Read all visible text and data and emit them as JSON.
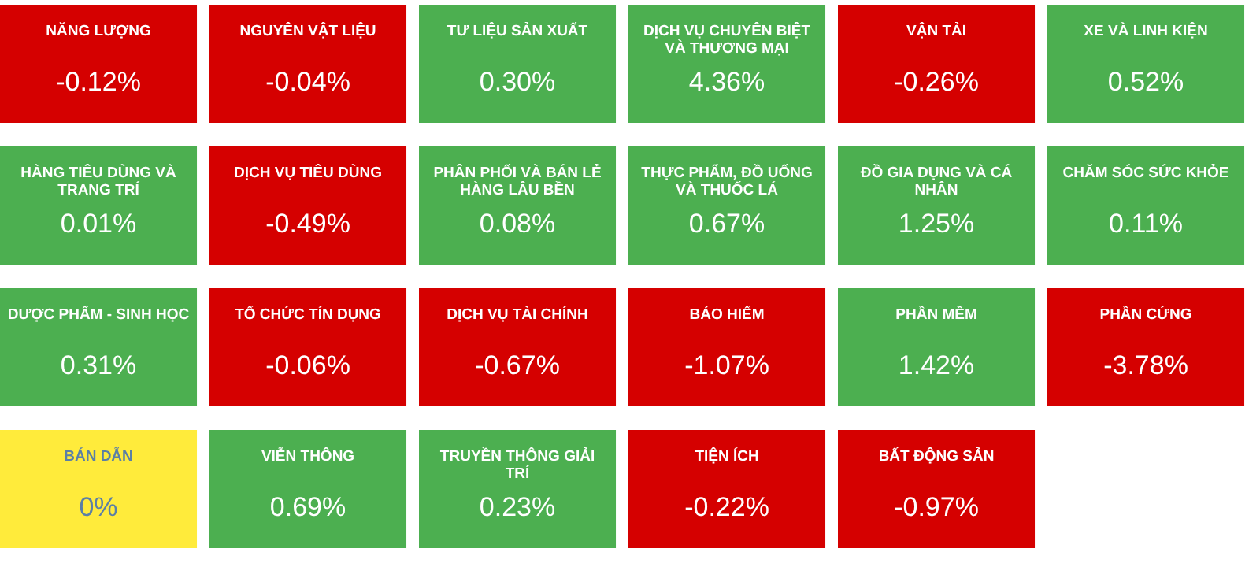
{
  "chart_data": {
    "type": "other",
    "categories": [
      "NĂNG LƯỢNG",
      "NGUYÊN VẬT LIỆU",
      "TƯ LIỆU SẢN XUẤT",
      "DỊCH VỤ CHUYÊN BIỆT VÀ THƯƠNG MẠI",
      "VẬN TẢI",
      "XE VÀ LINH KIỆN",
      "HÀNG TIÊU DÙNG VÀ TRANG TRÍ",
      "DỊCH VỤ TIÊU DÙNG",
      "PHÂN PHỐI VÀ BÁN LẺ HÀNG LÂU BỀN",
      "THỰC PHẨM, ĐỒ UỐNG VÀ THUỐC LÁ",
      "ĐỒ GIA DỤNG VÀ CÁ NHÂN",
      "CHĂM SÓC SỨC KHỎE",
      "DƯỢC PHẨM - SINH HỌC",
      "TỔ CHỨC TÍN DỤNG",
      "DỊCH VỤ TÀI CHÍNH",
      "BẢO HIỂM",
      "PHẦN MỀM",
      "PHẦN CỨNG",
      "BÁN DẪN",
      "VIỄN THÔNG",
      "TRUYỀN THÔNG GIẢI TRÍ",
      "TIỆN ÍCH",
      "BẤT ĐỘNG SẢN"
    ],
    "values": [
      -0.12,
      -0.04,
      0.3,
      4.36,
      -0.26,
      0.52,
      0.01,
      -0.49,
      0.08,
      0.67,
      1.25,
      0.11,
      0.31,
      -0.06,
      -0.67,
      -1.07,
      1.42,
      -3.78,
      0,
      0.69,
      0.23,
      -0.22,
      -0.97
    ],
    "value_labels": [
      "-0.12%",
      "-0.04%",
      "0.30%",
      "4.36%",
      "-0.26%",
      "0.52%",
      "0.01%",
      "-0.49%",
      "0.08%",
      "0.67%",
      "1.25%",
      "0.11%",
      "0.31%",
      "-0.06%",
      "-0.67%",
      "-1.07%",
      "1.42%",
      "-3.78%",
      "0%",
      "0.69%",
      "0.23%",
      "-0.22%",
      "-0.97%"
    ],
    "colors": [
      "#d50000",
      "#d50000",
      "#4caf50",
      "#4caf50",
      "#d50000",
      "#4caf50",
      "#4caf50",
      "#d50000",
      "#4caf50",
      "#4caf50",
      "#4caf50",
      "#4caf50",
      "#4caf50",
      "#d50000",
      "#d50000",
      "#d50000",
      "#4caf50",
      "#d50000",
      "#ffeb3b",
      "#4caf50",
      "#4caf50",
      "#d50000",
      "#d50000"
    ]
  }
}
